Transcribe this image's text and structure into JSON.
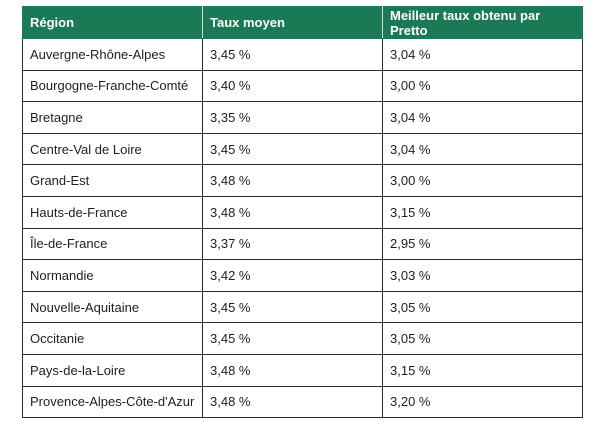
{
  "table": {
    "headers": [
      "Région",
      "Taux moyen",
      "Meilleur taux obtenu par Pretto"
    ],
    "rows": [
      [
        "Auvergne-Rhône-Alpes",
        "3,45 %",
        "3,04 %"
      ],
      [
        "Bourgogne-Franche-Comté",
        "3,40 %",
        "3,00 %"
      ],
      [
        "Bretagne",
        "3,35 %",
        "3,04 %"
      ],
      [
        "Centre-Val de Loire",
        "3,45 %",
        "3,04 %"
      ],
      [
        "Grand-Est",
        "3,48 %",
        "3,00 %"
      ],
      [
        "Hauts-de-France",
        "3,48 %",
        "3,15 %"
      ],
      [
        "Île-de-France",
        "3,37 %",
        "2,95 %"
      ],
      [
        "Normandie",
        "3,42 %",
        "3,03 %"
      ],
      [
        "Nouvelle-Aquitaine",
        "3,45 %",
        "3,05 %"
      ],
      [
        "Occitanie",
        "3,45 %",
        "3,05 %"
      ],
      [
        "Pays-de-la-Loire",
        "3,48 %",
        "3,15 %"
      ],
      [
        "Provence-Alpes-Côte-d'Azur",
        "3,48 %",
        "3,20 %"
      ]
    ]
  },
  "colors": {
    "header_background": "#1a7a56",
    "header_text": "#ffffff",
    "border": "#2b2b2b"
  }
}
